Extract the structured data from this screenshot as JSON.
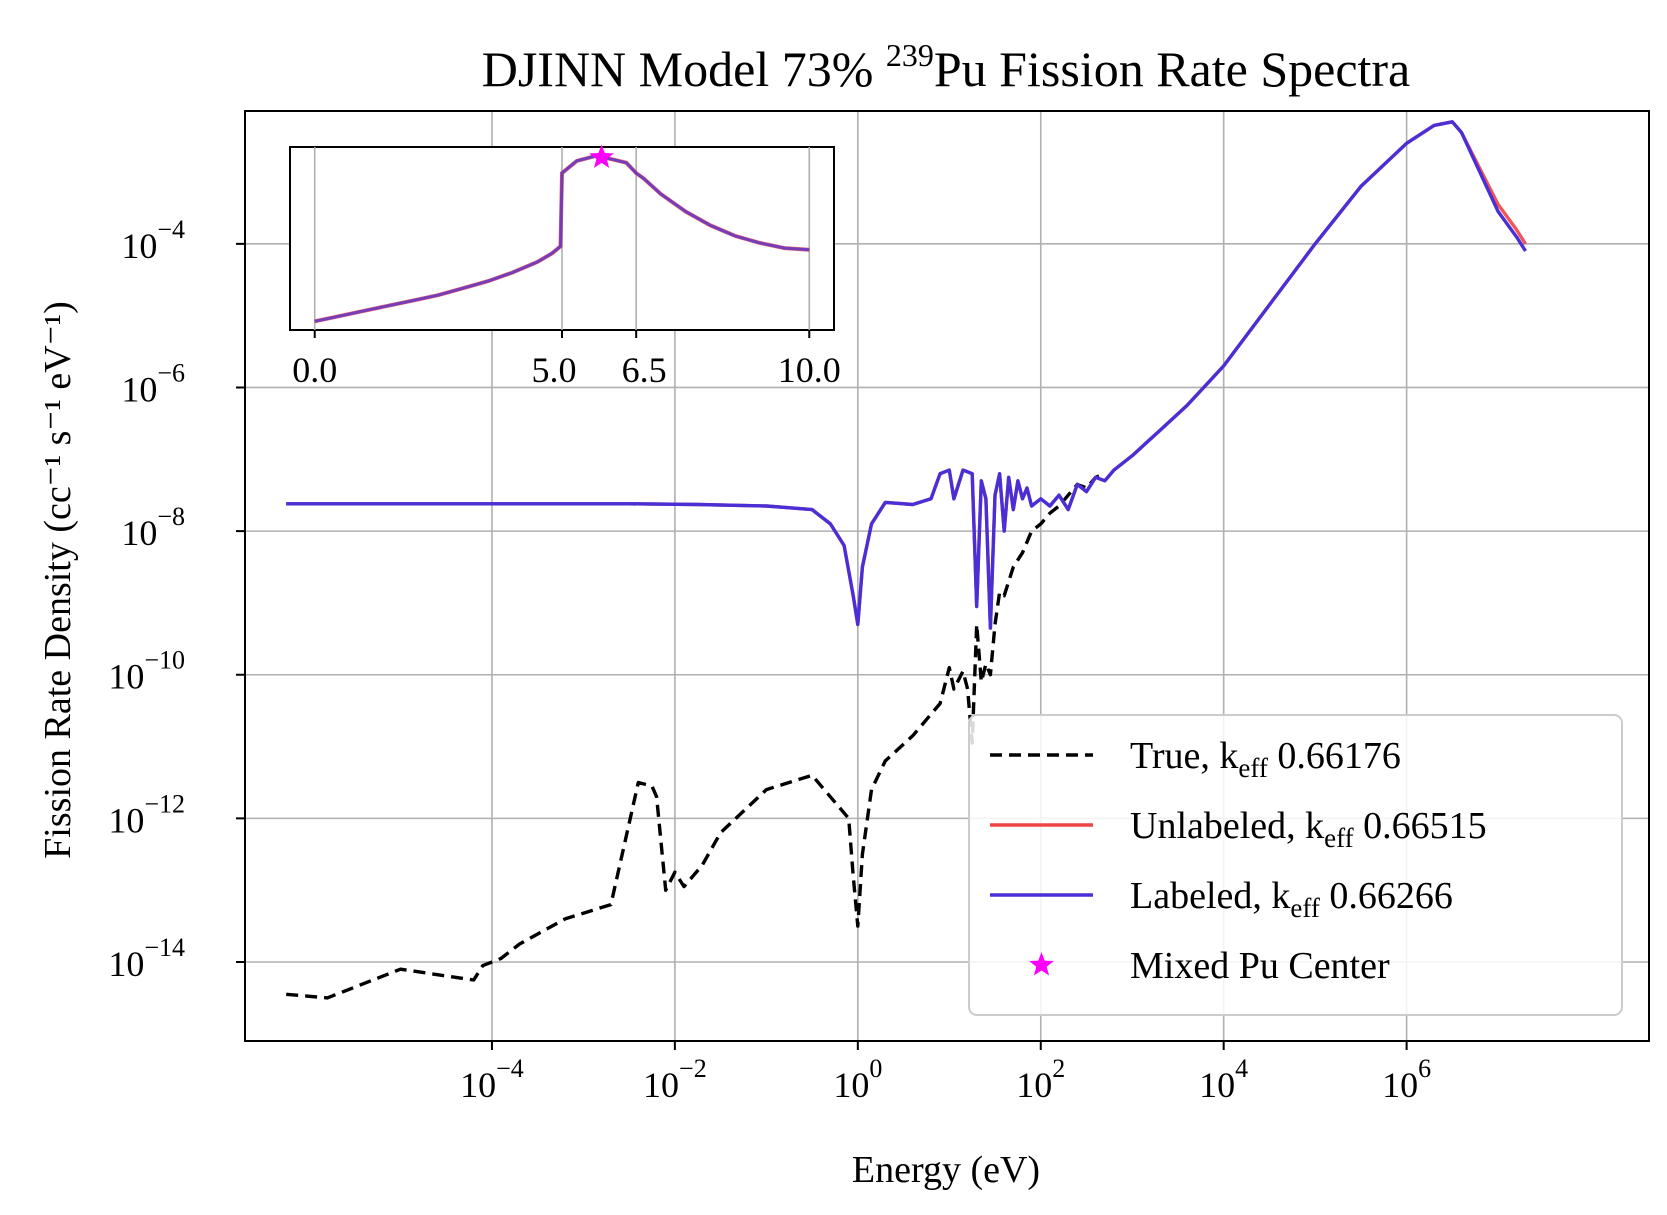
{
  "chart_data": {
    "type": "line",
    "title_prefix": "DJINN Model 73% ",
    "title_iso": "239",
    "title_suffix": "Pu Fission Rate Spectra",
    "xlabel": "Energy (eV)",
    "ylabel": "Fission Rate Density (cc⁻¹ s⁻¹ eV⁻¹)",
    "xscale": "log",
    "yscale": "log",
    "xlim_log10": [
      -6.7,
      8.65
    ],
    "ylim_log10": [
      -15.1,
      -2.15
    ],
    "grid": true,
    "x_ticks": [
      {
        "exp": -4,
        "base": "10",
        "sup": "−4"
      },
      {
        "exp": -2,
        "base": "10",
        "sup": "−2"
      },
      {
        "exp": 0,
        "base": "10",
        "sup": "0"
      },
      {
        "exp": 2,
        "base": "10",
        "sup": "2"
      },
      {
        "exp": 4,
        "base": "10",
        "sup": "4"
      },
      {
        "exp": 6,
        "base": "10",
        "sup": "6"
      }
    ],
    "y_ticks": [
      {
        "exp": -4,
        "base": "10",
        "sup": "−4"
      },
      {
        "exp": -6,
        "base": "10",
        "sup": "−6"
      },
      {
        "exp": -8,
        "base": "10",
        "sup": "−8"
      },
      {
        "exp": -10,
        "base": "10",
        "sup": "−10"
      },
      {
        "exp": -12,
        "base": "10",
        "sup": "−12"
      },
      {
        "exp": -14,
        "base": "10",
        "sup": "−14"
      }
    ],
    "series": [
      {
        "name": "Unlabeled",
        "color": "#ee4444",
        "style": "solid",
        "log_x": [
          -6.25,
          -5.5,
          -4.75,
          -4.0,
          -3.25,
          -2.5,
          -1.75,
          -1.0,
          -0.5,
          -0.3,
          -0.15,
          -0.05,
          0.0,
          0.05,
          0.15,
          0.3,
          0.6,
          0.8,
          0.9,
          1.0,
          1.05,
          1.15,
          1.25,
          1.3,
          1.35,
          1.4,
          1.45,
          1.5,
          1.55,
          1.6,
          1.65,
          1.7,
          1.75,
          1.8,
          1.85,
          1.9,
          2.0,
          2.1,
          2.2,
          2.3,
          2.4,
          2.5,
          2.6,
          2.7,
          2.8,
          3.0,
          3.3,
          3.6,
          4.0,
          4.5,
          5.0,
          5.5,
          6.0,
          6.3,
          6.5,
          6.6,
          6.8,
          7.0,
          7.2,
          7.3
        ],
        "log_y": [
          -7.62,
          -7.62,
          -7.62,
          -7.62,
          -7.62,
          -7.62,
          -7.63,
          -7.65,
          -7.7,
          -7.9,
          -8.2,
          -8.9,
          -9.3,
          -8.5,
          -7.9,
          -7.6,
          -7.63,
          -7.55,
          -7.2,
          -7.15,
          -7.55,
          -7.15,
          -7.2,
          -9.05,
          -7.3,
          -7.55,
          -9.35,
          -7.5,
          -7.2,
          -8.0,
          -7.25,
          -7.7,
          -7.3,
          -7.55,
          -7.4,
          -7.65,
          -7.55,
          -7.65,
          -7.5,
          -7.7,
          -7.35,
          -7.45,
          -7.25,
          -7.3,
          -7.15,
          -6.95,
          -6.6,
          -6.25,
          -5.7,
          -4.85,
          -4.0,
          -3.2,
          -2.6,
          -2.35,
          -2.3,
          -2.45,
          -2.95,
          -3.45,
          -3.8,
          -4.0
        ]
      },
      {
        "name": "Labeled",
        "color": "#4b2fd6",
        "style": "solid",
        "log_x": [
          -6.25,
          -5.5,
          -4.75,
          -4.0,
          -3.25,
          -2.5,
          -1.75,
          -1.0,
          -0.5,
          -0.3,
          -0.15,
          -0.05,
          0.0,
          0.05,
          0.15,
          0.3,
          0.6,
          0.8,
          0.9,
          1.0,
          1.05,
          1.15,
          1.25,
          1.3,
          1.35,
          1.4,
          1.45,
          1.5,
          1.55,
          1.6,
          1.65,
          1.7,
          1.75,
          1.8,
          1.85,
          1.9,
          2.0,
          2.1,
          2.2,
          2.3,
          2.4,
          2.5,
          2.6,
          2.7,
          2.8,
          3.0,
          3.3,
          3.6,
          4.0,
          4.5,
          5.0,
          5.5,
          6.0,
          6.3,
          6.5,
          6.6,
          6.8,
          7.0,
          7.2,
          7.3
        ],
        "log_y": [
          -7.62,
          -7.62,
          -7.62,
          -7.62,
          -7.62,
          -7.62,
          -7.63,
          -7.65,
          -7.7,
          -7.9,
          -8.2,
          -8.9,
          -9.3,
          -8.5,
          -7.9,
          -7.6,
          -7.63,
          -7.55,
          -7.2,
          -7.15,
          -7.55,
          -7.15,
          -7.2,
          -9.05,
          -7.3,
          -7.55,
          -9.35,
          -7.5,
          -7.2,
          -8.0,
          -7.25,
          -7.7,
          -7.3,
          -7.55,
          -7.4,
          -7.65,
          -7.55,
          -7.65,
          -7.5,
          -7.7,
          -7.35,
          -7.45,
          -7.25,
          -7.3,
          -7.15,
          -6.95,
          -6.6,
          -6.25,
          -5.7,
          -4.85,
          -4.0,
          -3.2,
          -2.6,
          -2.35,
          -2.3,
          -2.45,
          -3.0,
          -3.55,
          -3.9,
          -4.1
        ]
      },
      {
        "name": "True",
        "color": "#000000",
        "style": "dashed",
        "log_x": [
          -6.25,
          -5.8,
          -5.0,
          -4.2,
          -4.1,
          -3.9,
          -3.7,
          -3.2,
          -2.7,
          -2.4,
          -2.25,
          -2.2,
          -2.1,
          -2.0,
          -1.9,
          -1.7,
          -1.5,
          -1.0,
          -0.5,
          -0.1,
          -0.05,
          0.0,
          0.05,
          0.15,
          0.3,
          0.6,
          0.9,
          1.0,
          1.05,
          1.15,
          1.2,
          1.25,
          1.3,
          1.35,
          1.4,
          1.45,
          1.5,
          1.55,
          1.6,
          1.7,
          1.8,
          1.9,
          2.0,
          2.1,
          2.2,
          2.3,
          2.4,
          2.5,
          2.6,
          2.7
        ],
        "log_y": [
          -14.45,
          -14.5,
          -14.1,
          -14.25,
          -14.05,
          -13.95,
          -13.75,
          -13.4,
          -13.2,
          -11.5,
          -11.55,
          -11.7,
          -13.0,
          -12.75,
          -12.95,
          -12.65,
          -12.2,
          -11.6,
          -11.4,
          -12.0,
          -12.8,
          -13.5,
          -12.5,
          -11.6,
          -11.2,
          -10.85,
          -10.4,
          -9.9,
          -10.2,
          -9.95,
          -10.2,
          -10.95,
          -9.3,
          -10.1,
          -9.85,
          -10.0,
          -9.3,
          -8.85,
          -8.9,
          -8.5,
          -8.3,
          -8.0,
          -7.9,
          -7.75,
          -7.65,
          -7.5,
          -7.35,
          -7.4,
          -7.25,
          -7.2
        ]
      }
    ],
    "inset": {
      "x_ticks": [
        "0.0",
        "5.0",
        "6.5",
        "10.0"
      ],
      "x_tick_values": [
        0.0,
        5.0,
        6.5,
        10.0
      ],
      "xlim": [
        -0.5,
        10.5
      ],
      "ylim": [
        0.0,
        1.05
      ],
      "curve_x": [
        0.0,
        0.5,
        1.0,
        1.5,
        2.0,
        2.5,
        3.0,
        3.5,
        4.0,
        4.5,
        4.8,
        4.97,
        5.0,
        5.3,
        5.7,
        6.3,
        6.5,
        6.65,
        7.0,
        7.5,
        8.0,
        8.5,
        9.0,
        9.5,
        10.0
      ],
      "curve_y": [
        0.05,
        0.08,
        0.11,
        0.14,
        0.17,
        0.2,
        0.24,
        0.28,
        0.33,
        0.39,
        0.44,
        0.48,
        0.9,
        0.97,
        1.0,
        0.96,
        0.9,
        0.87,
        0.78,
        0.68,
        0.6,
        0.54,
        0.5,
        0.47,
        0.46
      ],
      "star_x": 5.8,
      "star_y": 0.99
    },
    "legend": {
      "position": "lower right",
      "entries": [
        {
          "series": "True",
          "prefix": "True, k",
          "sub": "eff",
          "value": " 0.66176",
          "marker": "dashed-line",
          "color": "#000000"
        },
        {
          "series": "Unlabeled",
          "prefix": "Unlabeled, k",
          "sub": "eff",
          "value": " 0.66515",
          "marker": "line",
          "color": "#ee4444"
        },
        {
          "series": "Labeled",
          "prefix": "Labeled, k",
          "sub": "eff",
          "value": " 0.66266",
          "marker": "line",
          "color": "#4b2fd6"
        },
        {
          "series": "Mixed Pu Center",
          "prefix": "Mixed Pu Center",
          "sub": "",
          "value": "",
          "marker": "star",
          "color": "#ff00ff"
        }
      ]
    }
  }
}
